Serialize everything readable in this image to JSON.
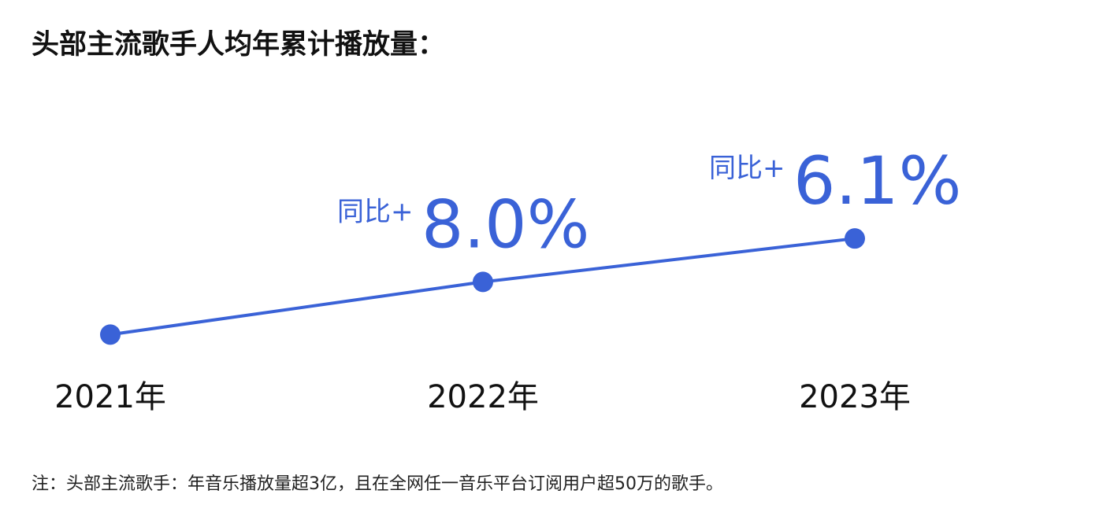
{
  "chart_data": {
    "type": "line",
    "title": "头部主流歌手人均年累计播放量：",
    "categories": [
      "2021年",
      "2022年",
      "2023年"
    ],
    "series": [
      {
        "values": [
          100,
          108,
          114.6
        ],
        "color": "#3a62d7"
      }
    ],
    "ylim": [
      90,
      120
    ],
    "annotations": [
      null,
      {
        "prefix": "同比+",
        "text": "8.0%"
      },
      {
        "prefix": "同比+",
        "text": "6.1%"
      }
    ],
    "note": "注：头部主流歌手：年音乐播放量超3亿，且在全网任一音乐平台订阅用户超50万的歌手。"
  }
}
